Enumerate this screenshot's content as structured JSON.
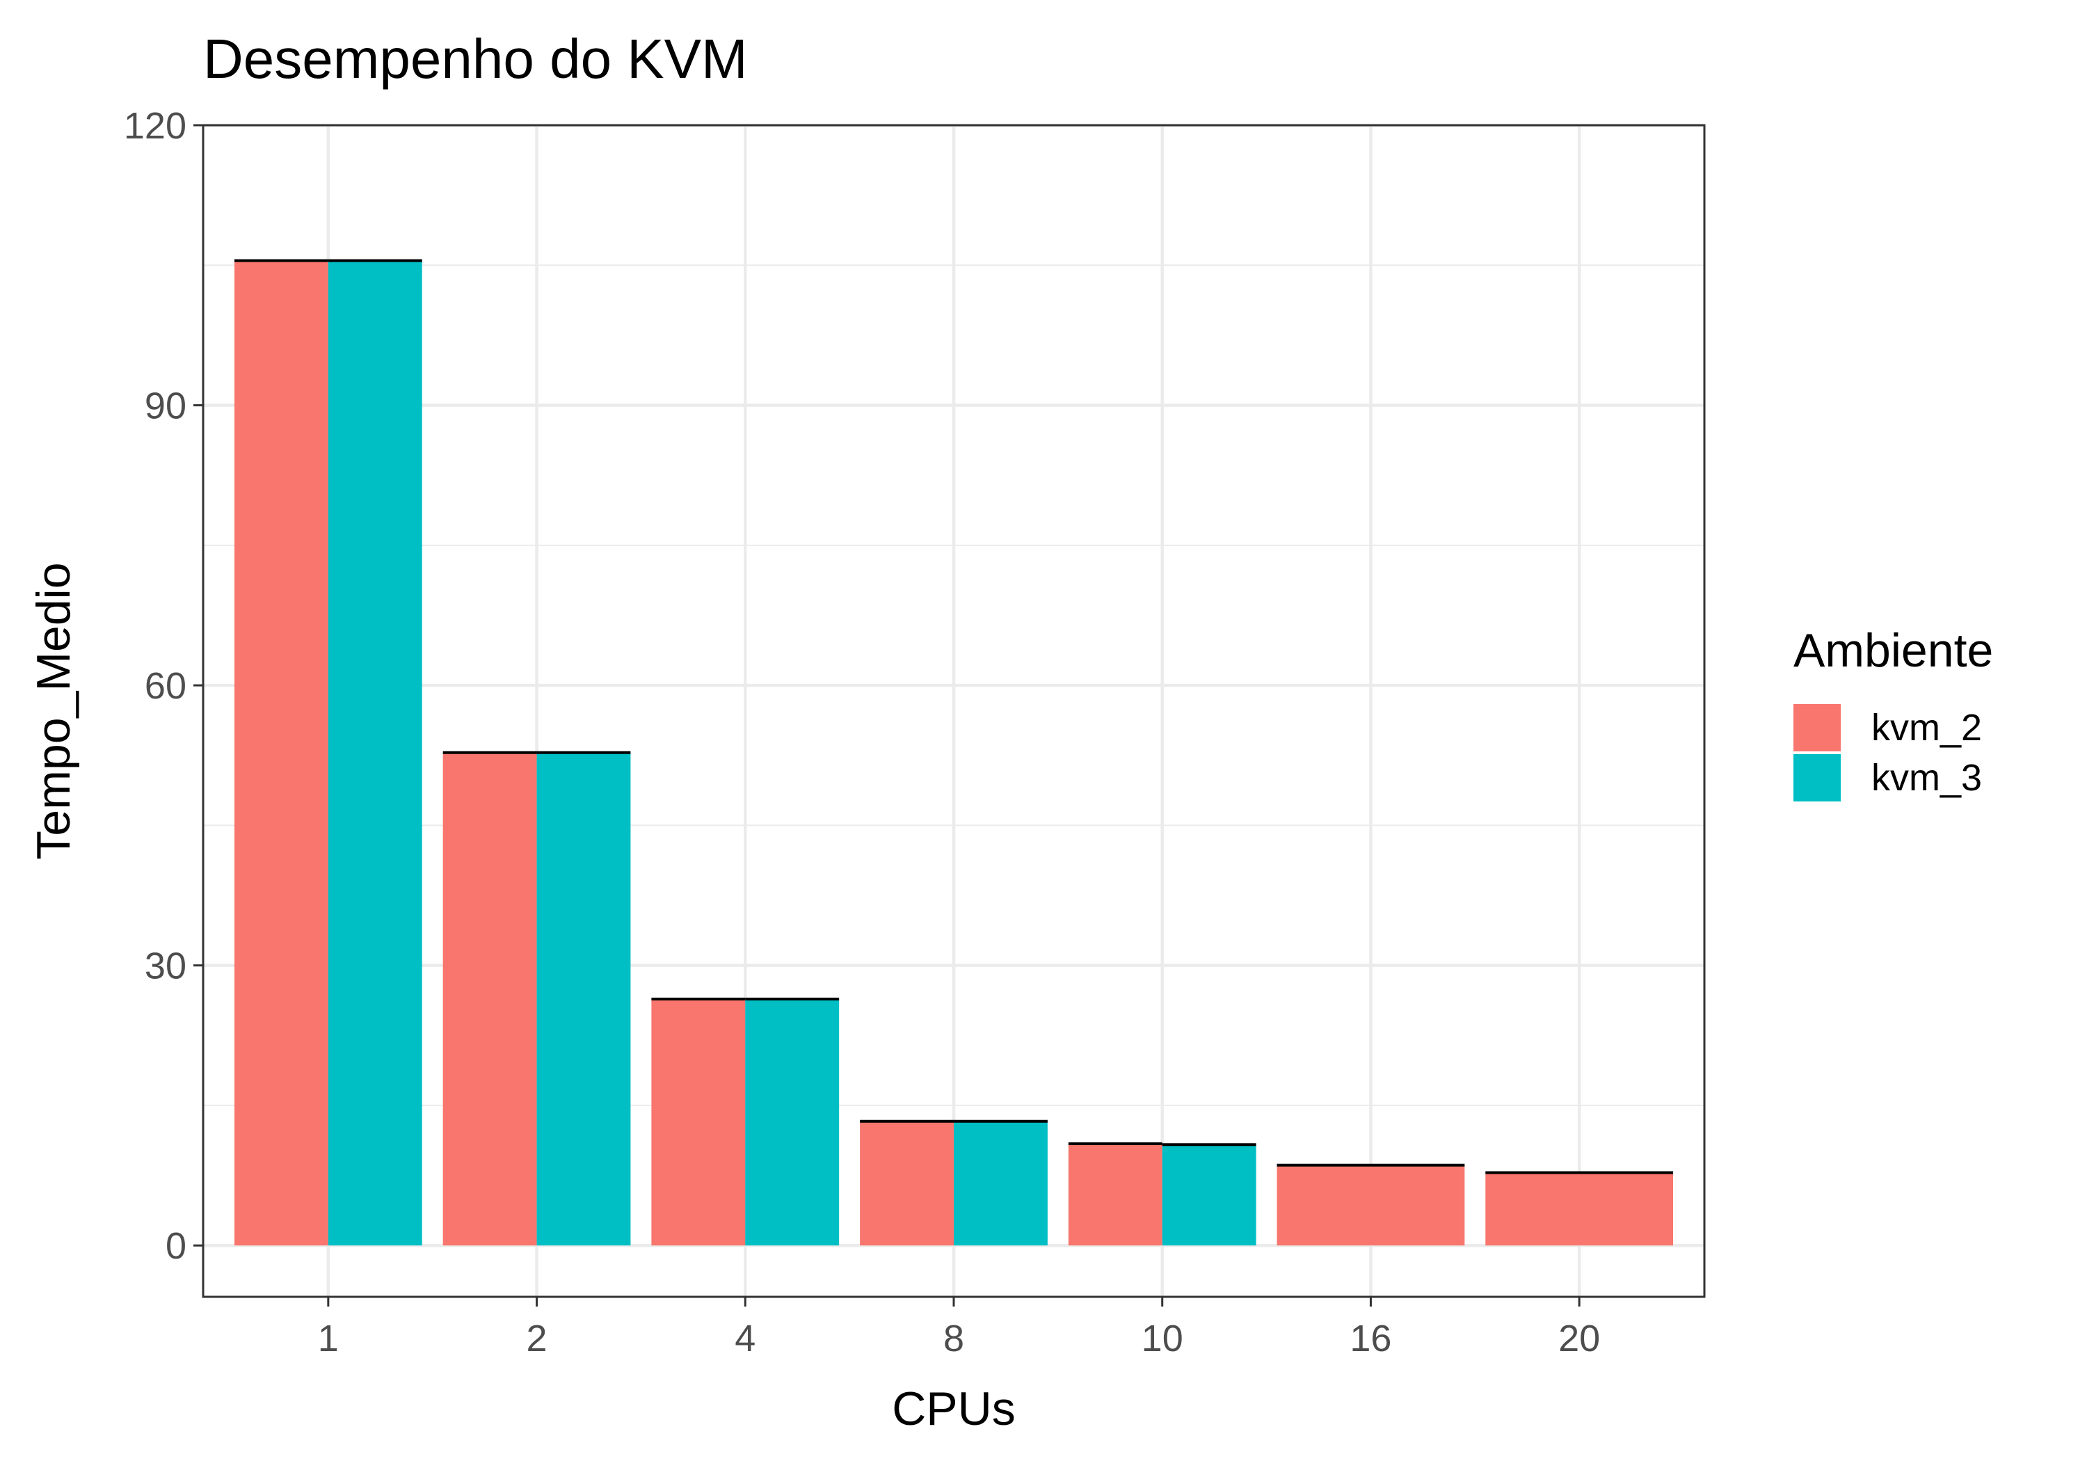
{
  "chart_data": {
    "type": "bar",
    "title": "Desempenho do KVM",
    "xlabel": "CPUs",
    "ylabel": "Tempo_Medio",
    "categories": [
      "1",
      "2",
      "4",
      "8",
      "10",
      "16",
      "20"
    ],
    "series": [
      {
        "name": "kvm_2",
        "color": "#F8766D",
        "values": [
          105.5,
          52.8,
          26.4,
          13.3,
          10.9,
          8.6,
          7.8
        ]
      },
      {
        "name": "kvm_3",
        "color": "#00BFC4",
        "values": [
          105.5,
          52.8,
          26.4,
          13.3,
          10.8,
          null,
          null
        ]
      }
    ],
    "ylim": [
      -5.5,
      120
    ],
    "yticks": [
      0,
      30,
      60,
      90,
      120
    ],
    "grid": true,
    "legend": {
      "title": "Ambiente",
      "position": "right"
    }
  }
}
